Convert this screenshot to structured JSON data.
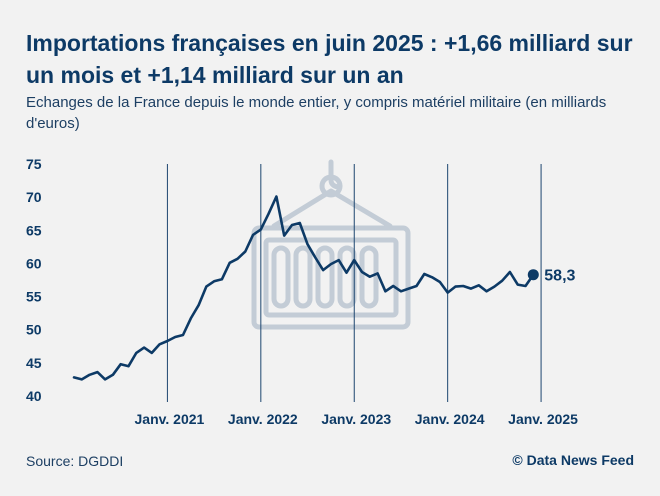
{
  "header": {
    "title": "Importations françaises en juin 2025 : +1,66 milliard sur un mois et +1,14 milliard sur un an",
    "subtitle": "Echanges de la France depuis le monde entier, y compris matériel militaire (en milliards d'euros)"
  },
  "footer": {
    "source": "Source: DGDDI",
    "credit": "© Data News Feed"
  },
  "colors": {
    "line": "#0d3a66",
    "text": "#0d3a66",
    "divider": "#1d4670",
    "illustration": "#c3ccd6",
    "background": "#f2f2f2"
  },
  "illustration": "shipping-container-on-hook-icon",
  "chart_data": {
    "type": "line",
    "title": "",
    "xlabel": "",
    "ylabel": "",
    "ylim": [
      40,
      75
    ],
    "yticks": [
      40,
      45,
      50,
      55,
      60,
      65,
      70,
      75
    ],
    "x_start": "2020-01",
    "x_end": "2025-06",
    "xticks": [
      {
        "date": "2021-01",
        "label": "Janv. 2021"
      },
      {
        "date": "2022-01",
        "label": "Janv. 2022"
      },
      {
        "date": "2023-01",
        "label": "Janv. 2023"
      },
      {
        "date": "2024-01",
        "label": "Janv. 2024"
      },
      {
        "date": "2025-01",
        "label": "Janv. 2025"
      }
    ],
    "grid": false,
    "series": [
      {
        "name": "",
        "last_value_label": "58,3",
        "points": [
          {
            "x": "2020-01",
            "y": 42.8
          },
          {
            "x": "2020-02",
            "y": 42.5
          },
          {
            "x": "2020-03",
            "y": 43.2
          },
          {
            "x": "2020-04",
            "y": 43.6
          },
          {
            "x": "2020-05",
            "y": 42.5
          },
          {
            "x": "2020-06",
            "y": 43.2
          },
          {
            "x": "2020-07",
            "y": 44.8
          },
          {
            "x": "2020-08",
            "y": 44.5
          },
          {
            "x": "2020-09",
            "y": 46.5
          },
          {
            "x": "2020-10",
            "y": 47.3
          },
          {
            "x": "2020-11",
            "y": 46.5
          },
          {
            "x": "2020-12",
            "y": 47.8
          },
          {
            "x": "2021-01",
            "y": 48.3
          },
          {
            "x": "2021-02",
            "y": 48.9
          },
          {
            "x": "2021-03",
            "y": 49.2
          },
          {
            "x": "2021-04",
            "y": 51.7
          },
          {
            "x": "2021-05",
            "y": 53.7
          },
          {
            "x": "2021-06",
            "y": 56.5
          },
          {
            "x": "2021-07",
            "y": 57.3
          },
          {
            "x": "2021-08",
            "y": 57.6
          },
          {
            "x": "2021-09",
            "y": 60.1
          },
          {
            "x": "2021-10",
            "y": 60.7
          },
          {
            "x": "2021-11",
            "y": 61.8
          },
          {
            "x": "2021-12",
            "y": 64.3
          },
          {
            "x": "2022-01",
            "y": 65.1
          },
          {
            "x": "2022-02",
            "y": 67.5
          },
          {
            "x": "2022-03",
            "y": 70.1
          },
          {
            "x": "2022-04",
            "y": 64.2
          },
          {
            "x": "2022-05",
            "y": 65.8
          },
          {
            "x": "2022-06",
            "y": 66.1
          },
          {
            "x": "2022-07",
            "y": 62.9
          },
          {
            "x": "2022-08",
            "y": 60.9
          },
          {
            "x": "2022-09",
            "y": 59.0
          },
          {
            "x": "2022-10",
            "y": 59.9
          },
          {
            "x": "2022-11",
            "y": 60.5
          },
          {
            "x": "2022-12",
            "y": 58.6
          },
          {
            "x": "2023-01",
            "y": 60.5
          },
          {
            "x": "2023-02",
            "y": 58.7
          },
          {
            "x": "2023-03",
            "y": 58.0
          },
          {
            "x": "2023-04",
            "y": 58.5
          },
          {
            "x": "2023-05",
            "y": 55.8
          },
          {
            "x": "2023-06",
            "y": 56.6
          },
          {
            "x": "2023-07",
            "y": 55.8
          },
          {
            "x": "2023-08",
            "y": 56.2
          },
          {
            "x": "2023-09",
            "y": 56.6
          },
          {
            "x": "2023-10",
            "y": 58.4
          },
          {
            "x": "2023-11",
            "y": 57.9
          },
          {
            "x": "2023-12",
            "y": 57.2
          },
          {
            "x": "2024-01",
            "y": 55.6
          },
          {
            "x": "2024-02",
            "y": 56.5
          },
          {
            "x": "2024-03",
            "y": 56.6
          },
          {
            "x": "2024-04",
            "y": 56.2
          },
          {
            "x": "2024-05",
            "y": 56.7
          },
          {
            "x": "2024-06",
            "y": 55.8
          },
          {
            "x": "2024-07",
            "y": 56.5
          },
          {
            "x": "2024-08",
            "y": 57.4
          },
          {
            "x": "2024-09",
            "y": 58.7
          },
          {
            "x": "2024-10",
            "y": 56.8
          },
          {
            "x": "2024-11",
            "y": 56.6
          },
          {
            "x": "2024-12",
            "y": 58.3
          }
        ]
      }
    ]
  }
}
